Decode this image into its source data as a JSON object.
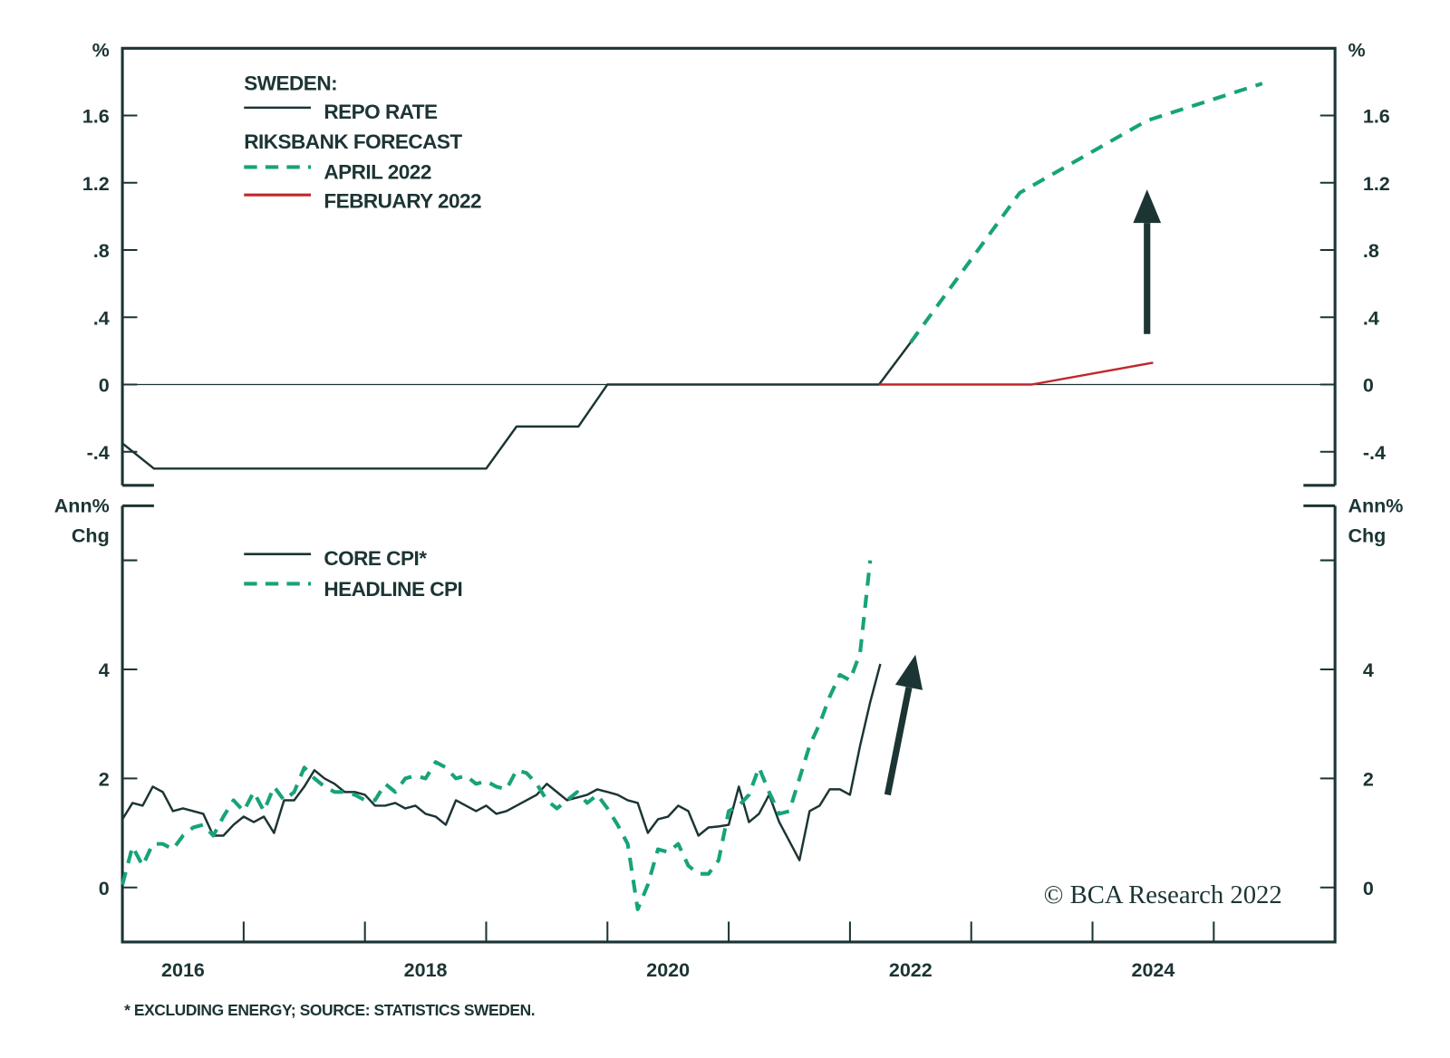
{
  "colors": {
    "dark": "#1c3434",
    "green": "#17a37a",
    "red": "#c1272d"
  },
  "footnote": "* EXCLUDING ENERGY; SOURCE: STATISTICS SWEDEN.",
  "copyright": "© BCA Research 2022",
  "chart_data": [
    {
      "type": "line",
      "panel": "top",
      "unit_left": "%",
      "unit_right": "%",
      "xlim": [
        2016,
        2026
      ],
      "ylim": [
        -0.6,
        2.0
      ],
      "yticks": [
        -0.4,
        0,
        0.4,
        0.8,
        1.2,
        1.6
      ],
      "ytick_labels": [
        "-.4",
        "0",
        ".4",
        ".8",
        "1.2",
        "1.6"
      ],
      "grid": false,
      "zero_line": true,
      "legend": {
        "title": "SWEDEN:",
        "subtitle": "RIKSBANK FORECAST",
        "placement": "top-left"
      },
      "series": [
        {
          "name": "REPO RATE",
          "style": "solid",
          "color": "#1c3434",
          "x": [
            2016.0,
            2016.26,
            2019.0,
            2019.25,
            2019.76,
            2020.0,
            2022.24,
            2022.5
          ],
          "y": [
            -0.35,
            -0.5,
            -0.5,
            -0.25,
            -0.25,
            0,
            0,
            0.25
          ]
        },
        {
          "name": "APRIL 2022",
          "style": "dashed",
          "color": "#17a37a",
          "x": [
            2022.5,
            2023.4,
            2024.45,
            2025.4
          ],
          "y": [
            0.25,
            1.14,
            1.57,
            1.79
          ]
        },
        {
          "name": "FEBRUARY 2022",
          "style": "solid",
          "color": "#c1272d",
          "x": [
            2022.24,
            2023.5,
            2024.5
          ],
          "y": [
            0,
            0,
            0.13
          ]
        }
      ],
      "annotations": [
        {
          "type": "arrow",
          "from": [
            2024.45,
            0.3
          ],
          "to": [
            2024.45,
            1.16
          ]
        }
      ]
    },
    {
      "type": "line",
      "panel": "bottom",
      "unit_left": "Ann% Chg",
      "unit_right": "Ann% Chg",
      "xlim": [
        2016,
        2026
      ],
      "ylim": [
        -1,
        7
      ],
      "yticks": [
        0,
        2,
        4,
        6
      ],
      "ytick_labels": [
        "0",
        "2",
        "4",
        ""
      ],
      "xticks": [
        2017,
        2018,
        2019,
        2020,
        2021,
        2022,
        2023,
        2024,
        2025
      ],
      "xlabels": [
        "2016",
        "2018",
        "2020",
        "2022",
        "2024"
      ],
      "grid": false,
      "legend": {
        "placement": "top-left"
      },
      "x_start": 2016.0,
      "x_step_months": 1,
      "series": [
        {
          "name": "CORE CPI*",
          "style": "solid",
          "color": "#1c3434",
          "values": [
            1.25,
            1.55,
            1.5,
            1.85,
            1.75,
            1.4,
            1.45,
            1.4,
            1.35,
            0.95,
            0.95,
            1.15,
            1.3,
            1.2,
            1.3,
            1.0,
            1.6,
            1.6,
            1.85,
            2.15,
            2.0,
            1.9,
            1.75,
            1.75,
            1.7,
            1.5,
            1.5,
            1.55,
            1.45,
            1.5,
            1.35,
            1.3,
            1.15,
            1.6,
            1.5,
            1.4,
            1.5,
            1.35,
            1.4,
            1.5,
            1.6,
            1.7,
            1.9,
            1.75,
            1.6,
            1.65,
            1.7,
            1.8,
            1.75,
            1.7,
            1.6,
            1.55,
            1.0,
            1.25,
            1.3,
            1.5,
            1.4,
            0.95,
            1.1,
            1.12,
            1.15,
            1.85,
            1.2,
            1.35,
            1.7,
            1.2,
            0.85,
            0.5,
            1.4,
            1.5,
            1.8,
            1.8,
            1.7,
            2.6,
            3.4,
            4.1
          ]
        },
        {
          "name": "HEADLINE CPI",
          "style": "dashed",
          "color": "#17a37a",
          "values": [
            0.05,
            0.75,
            0.4,
            0.8,
            0.8,
            0.7,
            0.95,
            1.1,
            1.15,
            0.95,
            1.3,
            1.6,
            1.4,
            1.75,
            1.4,
            1.85,
            1.6,
            1.75,
            2.2,
            2.0,
            1.85,
            1.75,
            1.75,
            1.7,
            1.6,
            1.6,
            1.9,
            1.75,
            2.0,
            2.05,
            2.0,
            2.3,
            2.2,
            2.0,
            2.05,
            1.9,
            1.95,
            1.85,
            1.8,
            2.15,
            2.1,
            1.9,
            1.6,
            1.45,
            1.6,
            1.75,
            1.55,
            1.7,
            1.45,
            1.15,
            0.8,
            -0.4,
            0.05,
            0.7,
            0.65,
            0.8,
            0.4,
            0.25,
            0.25,
            0.5,
            1.4,
            1.5,
            1.7,
            2.2,
            1.75,
            1.35,
            1.4,
            2.0,
            2.6,
            3.0,
            3.5,
            3.9,
            3.8,
            4.3,
            6.0
          ]
        }
      ],
      "annotations": [
        {
          "type": "arrow",
          "from": [
            2022.31,
            1.7
          ],
          "to": [
            2022.54,
            4.27
          ]
        }
      ]
    }
  ]
}
